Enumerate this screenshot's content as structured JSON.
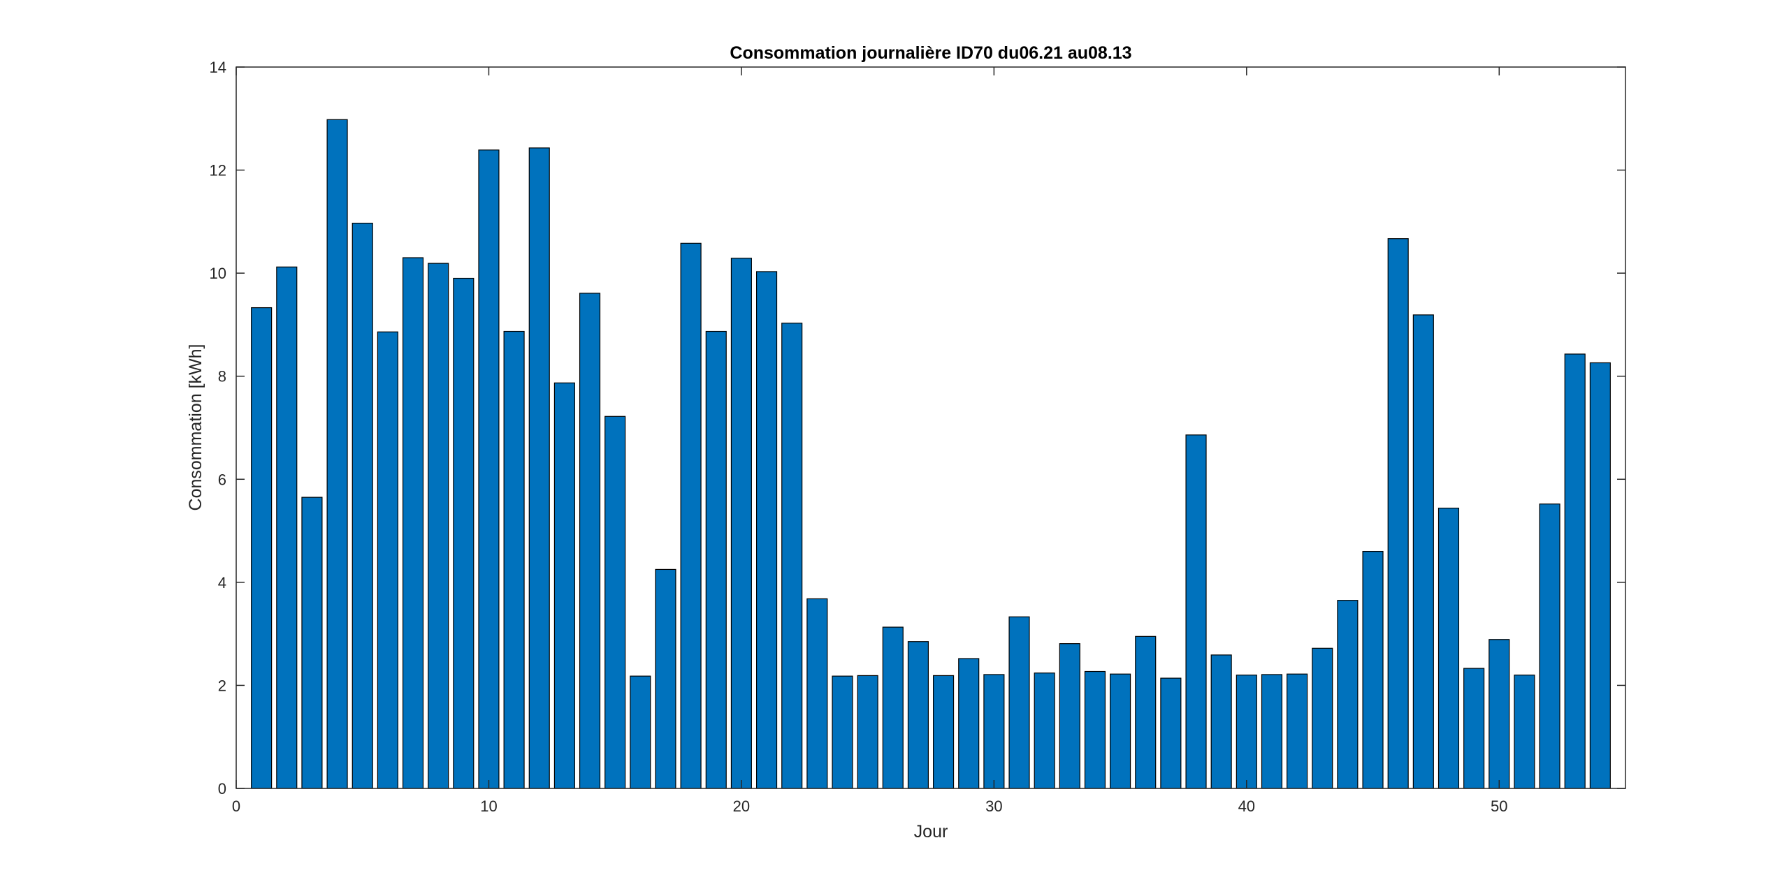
{
  "chart_data": {
    "type": "bar",
    "title": "Consommation journalière ID70 du06.21 au08.13",
    "xlabel": "Jour",
    "ylabel": "Consommation [kWh]",
    "xlim": [
      0,
      55
    ],
    "ylim": [
      0,
      14
    ],
    "xticks": [
      0,
      10,
      20,
      30,
      40,
      50
    ],
    "yticks": [
      0,
      2,
      4,
      6,
      8,
      10,
      12,
      14
    ],
    "grid": false,
    "bar_color": "#0072BD",
    "bar_edge_color": "#000000",
    "x": [
      1,
      2,
      3,
      4,
      5,
      6,
      7,
      8,
      9,
      10,
      11,
      12,
      13,
      14,
      15,
      16,
      17,
      18,
      19,
      20,
      21,
      22,
      23,
      24,
      25,
      26,
      27,
      28,
      29,
      30,
      31,
      32,
      33,
      34,
      35,
      36,
      37,
      38,
      39,
      40,
      41,
      42,
      43,
      44,
      45,
      46,
      47,
      48,
      49,
      50,
      51,
      52,
      53,
      54
    ],
    "values": [
      9.33,
      10.12,
      5.65,
      12.98,
      10.97,
      8.86,
      10.3,
      10.19,
      9.9,
      12.39,
      8.87,
      12.43,
      7.87,
      9.61,
      7.22,
      2.18,
      4.25,
      10.58,
      8.87,
      10.29,
      10.03,
      9.03,
      3.68,
      2.18,
      2.19,
      3.13,
      2.85,
      2.19,
      2.52,
      2.21,
      3.33,
      2.24,
      2.81,
      2.27,
      2.22,
      2.95,
      2.14,
      6.86,
      2.59,
      2.2,
      2.21,
      2.22,
      2.72,
      3.65,
      4.6,
      10.67,
      9.19,
      5.44,
      2.33,
      2.89,
      2.2,
      5.52,
      8.43,
      8.26
    ]
  }
}
